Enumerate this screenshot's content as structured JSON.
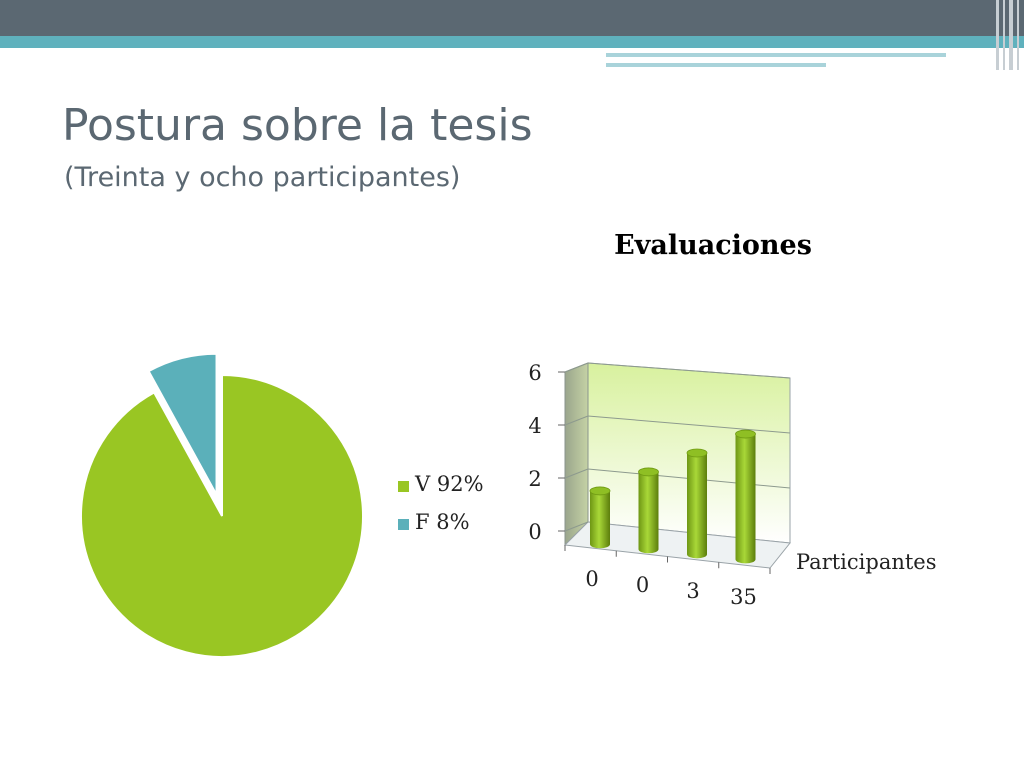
{
  "slide": {
    "title": "Postura sobre la tesis",
    "subtitle": "(Treinta y ocho participantes)"
  },
  "colors": {
    "header_dark": "#5b6872",
    "header_accent": "#5fb1bd",
    "green": "#99c623",
    "teal": "#5bb0ba"
  },
  "chart_data": [
    {
      "type": "pie",
      "title": "",
      "slices": [
        {
          "label": "V 92%",
          "value": 92,
          "color": "#99c623"
        },
        {
          "label": "F 8%",
          "value": 8,
          "color": "#5bb0ba",
          "exploded": true
        }
      ],
      "legend": [
        "V 92%",
        "F 8%"
      ],
      "legend_position": "right"
    },
    {
      "type": "bar",
      "style": "3d-cylinder",
      "title": "Evaluaciones",
      "categories": [
        "0",
        "0",
        "3",
        "35"
      ],
      "series": [
        {
          "name": "Participantes",
          "values": [
            2,
            2.9,
            3.8,
            4.7
          ]
        }
      ],
      "yticks": [
        0,
        2,
        4,
        6
      ],
      "ylim": [
        0,
        6
      ],
      "grid": true,
      "legend_position": "right"
    }
  ]
}
